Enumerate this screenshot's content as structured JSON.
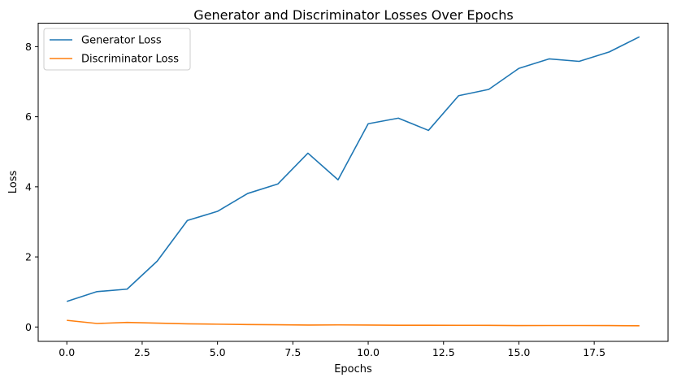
{
  "chart_data": {
    "type": "line",
    "title": "Generator and Discriminator Losses Over Epochs",
    "xlabel": "Epochs",
    "ylabel": "Loss",
    "xlim": [
      -0.95,
      19.95
    ],
    "ylim": [
      -0.41,
      8.67
    ],
    "xticks": [
      0.0,
      2.5,
      5.0,
      7.5,
      10.0,
      12.5,
      15.0,
      17.5
    ],
    "xtick_labels": [
      "0.0",
      "2.5",
      "5.0",
      "7.5",
      "10.0",
      "12.5",
      "15.0",
      "17.5"
    ],
    "yticks": [
      0,
      2,
      4,
      6,
      8
    ],
    "ytick_labels": [
      "0",
      "2",
      "4",
      "6",
      "8"
    ],
    "grid": false,
    "legend_position": "top-left",
    "x": [
      0,
      1,
      2,
      3,
      4,
      5,
      6,
      7,
      8,
      9,
      10,
      11,
      12,
      13,
      14,
      15,
      16,
      17,
      18,
      19
    ],
    "series": [
      {
        "name": "Generator Loss",
        "color": "#1f77b4",
        "values": [
          0.73,
          1.01,
          1.08,
          1.88,
          3.04,
          3.3,
          3.81,
          4.08,
          4.96,
          4.2,
          5.8,
          5.96,
          5.61,
          6.6,
          6.78,
          7.38,
          7.65,
          7.58,
          7.85,
          8.28
        ]
      },
      {
        "name": "Discriminator Loss",
        "color": "#ff7f0e",
        "values": [
          0.19,
          0.1,
          0.13,
          0.11,
          0.09,
          0.08,
          0.07,
          0.065,
          0.055,
          0.06,
          0.055,
          0.05,
          0.05,
          0.048,
          0.047,
          0.04,
          0.042,
          0.042,
          0.04,
          0.035
        ]
      }
    ]
  }
}
